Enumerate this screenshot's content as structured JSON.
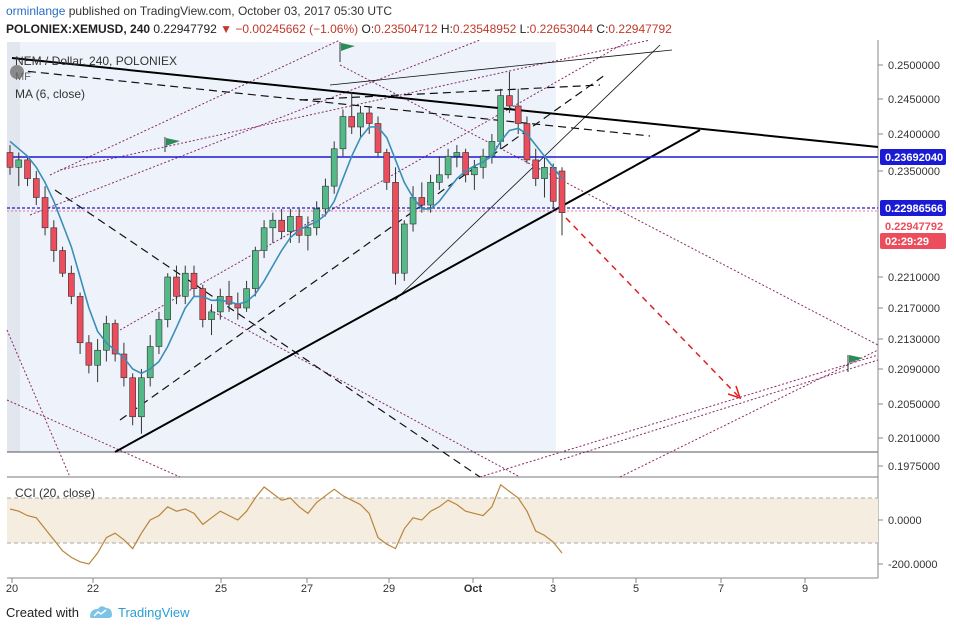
{
  "header": {
    "author": "orminlange",
    "published": "published on TradingView.com, October 03, 2017 05:30 UTC",
    "symbol": "POLONIEX:XEMUSD, 240",
    "last": "0.22947792",
    "change": "−0.00245662 (−1.06%)",
    "o_label": "O:",
    "o_value": "0.23504712",
    "h_label": "H:",
    "h_value": "0.23548952",
    "l_label": "L:",
    "l_value": "0.22653044",
    "c_label": "C:",
    "c_value": "0.22947792"
  },
  "legend": {
    "title": "NEM / Dollar, 240, POLONIEX",
    "mf": "MF",
    "ma": "MA (6, close)",
    "cci": "CCI (20, close)"
  },
  "footer": {
    "created_with": "Created with",
    "brand": "TradingView"
  },
  "colors": {
    "up": "#53b987",
    "down": "#eb4d5c",
    "ma": "#3a8fb7",
    "cci": "#b9853a",
    "hline": "#1b1bd6",
    "arrow": "#e02020",
    "trend": "#000000",
    "fan": "#8b2a6a"
  },
  "chart_data": [
    {
      "type": "candlestick",
      "title": "NEM / Dollar, 240, POLONIEX",
      "y_ticks": [
        "0.2500000",
        "0.2450000",
        "0.2400000",
        "0.2350000",
        "0.2210000",
        "0.2170000",
        "0.2130000",
        "0.2090000",
        "0.2050000",
        "0.2010000",
        "0.1975000"
      ],
      "x_ticks": [
        "20",
        "22",
        "25",
        "27",
        "29",
        "Oct",
        "3",
        "5",
        "7",
        "9"
      ],
      "price_labels": [
        {
          "value": "0.23692040",
          "kind": "horizontal-line"
        },
        {
          "value": "0.22986566",
          "kind": "horizontal-line"
        },
        {
          "value": "0.22947792",
          "kind": "last-price"
        },
        {
          "value": "02:29:29",
          "kind": "countdown"
        }
      ],
      "ohlc": [
        [
          0.2375,
          0.2385,
          0.2345,
          0.2355
        ],
        [
          0.2355,
          0.2375,
          0.233,
          0.2365
        ],
        [
          0.2365,
          0.237,
          0.233,
          0.234
        ],
        [
          0.234,
          0.235,
          0.2305,
          0.2315
        ],
        [
          0.2315,
          0.233,
          0.2265,
          0.2275
        ],
        [
          0.2275,
          0.2285,
          0.223,
          0.2245
        ],
        [
          0.2245,
          0.225,
          0.221,
          0.2215
        ],
        [
          0.2215,
          0.2225,
          0.2175,
          0.2185
        ],
        [
          0.2185,
          0.219,
          0.211,
          0.2125
        ],
        [
          0.2125,
          0.2135,
          0.2085,
          0.2095
        ],
        [
          0.2095,
          0.213,
          0.2075,
          0.2115
        ],
        [
          0.2115,
          0.216,
          0.21,
          0.215
        ],
        [
          0.215,
          0.2155,
          0.21,
          0.211
        ],
        [
          0.211,
          0.2125,
          0.207,
          0.208
        ],
        [
          0.208,
          0.2085,
          0.2025,
          0.2035
        ],
        [
          0.2035,
          0.209,
          0.2015,
          0.208
        ],
        [
          0.208,
          0.2135,
          0.207,
          0.212
        ],
        [
          0.212,
          0.2165,
          0.211,
          0.2155
        ],
        [
          0.2155,
          0.2215,
          0.2145,
          0.221
        ],
        [
          0.221,
          0.2225,
          0.2175,
          0.2185
        ],
        [
          0.2185,
          0.2225,
          0.2175,
          0.2215
        ],
        [
          0.2215,
          0.2225,
          0.2185,
          0.2195
        ],
        [
          0.2195,
          0.22,
          0.2145,
          0.2155
        ],
        [
          0.2155,
          0.2175,
          0.2135,
          0.2165
        ],
        [
          0.2165,
          0.2195,
          0.2155,
          0.2185
        ],
        [
          0.2185,
          0.2205,
          0.2165,
          0.2175
        ],
        [
          0.2175,
          0.219,
          0.2155,
          0.217
        ],
        [
          0.217,
          0.2205,
          0.2165,
          0.2195
        ],
        [
          0.2195,
          0.225,
          0.2185,
          0.2245
        ],
        [
          0.2245,
          0.2285,
          0.2235,
          0.2275
        ],
        [
          0.2275,
          0.2295,
          0.2255,
          0.2285
        ],
        [
          0.2285,
          0.23,
          0.226,
          0.227
        ],
        [
          0.227,
          0.23,
          0.2255,
          0.229
        ],
        [
          0.229,
          0.23,
          0.2255,
          0.2265
        ],
        [
          0.2265,
          0.229,
          0.2245,
          0.2275
        ],
        [
          0.2275,
          0.231,
          0.2265,
          0.23
        ],
        [
          0.23,
          0.234,
          0.229,
          0.233
        ],
        [
          0.233,
          0.239,
          0.232,
          0.238
        ],
        [
          0.238,
          0.2435,
          0.237,
          0.2425
        ],
        [
          0.2425,
          0.246,
          0.24,
          0.241
        ],
        [
          0.241,
          0.244,
          0.2395,
          0.243
        ],
        [
          0.243,
          0.244,
          0.24,
          0.2415
        ],
        [
          0.2415,
          0.2425,
          0.237,
          0.2375
        ],
        [
          0.2375,
          0.238,
          0.2325,
          0.2335
        ],
        [
          0.2335,
          0.2355,
          0.22,
          0.2215
        ],
        [
          0.2215,
          0.2285,
          0.2205,
          0.228
        ],
        [
          0.228,
          0.233,
          0.227,
          0.2315
        ],
        [
          0.2315,
          0.2335,
          0.2295,
          0.2305
        ],
        [
          0.2305,
          0.2345,
          0.2295,
          0.2335
        ],
        [
          0.2335,
          0.237,
          0.2325,
          0.2345
        ],
        [
          0.2345,
          0.238,
          0.234,
          0.237
        ],
        [
          0.237,
          0.2385,
          0.2355,
          0.2375
        ],
        [
          0.2375,
          0.238,
          0.2335,
          0.2345
        ],
        [
          0.2345,
          0.2365,
          0.2325,
          0.2355
        ],
        [
          0.2355,
          0.238,
          0.234,
          0.237
        ],
        [
          0.237,
          0.24,
          0.236,
          0.239
        ],
        [
          0.239,
          0.2465,
          0.238,
          0.2455
        ],
        [
          0.2455,
          0.249,
          0.243,
          0.244
        ],
        [
          0.244,
          0.2465,
          0.24,
          0.2415
        ],
        [
          0.2415,
          0.2425,
          0.236,
          0.2365
        ],
        [
          0.2365,
          0.238,
          0.233,
          0.234
        ],
        [
          0.234,
          0.237,
          0.2315,
          0.2355
        ],
        [
          0.2355,
          0.236,
          0.23,
          0.231
        ],
        [
          0.235,
          0.2355,
          0.2265,
          0.2295
        ]
      ],
      "ma_6": [
        0.239,
        0.238,
        0.237,
        0.2355,
        0.2335,
        0.231,
        0.228,
        0.225,
        0.221,
        0.217,
        0.214,
        0.2125,
        0.2115,
        0.2105,
        0.209,
        0.2085,
        0.209,
        0.21,
        0.212,
        0.2145,
        0.217,
        0.2185,
        0.2185,
        0.218,
        0.218,
        0.2178,
        0.2175,
        0.2178,
        0.2188,
        0.2205,
        0.2225,
        0.2245,
        0.2262,
        0.2272,
        0.2278,
        0.2283,
        0.2292,
        0.231,
        0.234,
        0.237,
        0.2395,
        0.241,
        0.241,
        0.2395,
        0.2365,
        0.2335,
        0.2315,
        0.23,
        0.23,
        0.231,
        0.2325,
        0.234,
        0.235,
        0.2357,
        0.2362,
        0.237,
        0.239,
        0.2405,
        0.2408,
        0.24,
        0.2385,
        0.237,
        0.2355,
        0.234
      ],
      "cci_20": [
        50,
        40,
        20,
        10,
        -40,
        -90,
        -140,
        -170,
        -190,
        -200,
        -150,
        -80,
        -60,
        -90,
        -130,
        -60,
        0,
        20,
        60,
        40,
        50,
        30,
        -20,
        10,
        40,
        20,
        0,
        40,
        100,
        150,
        120,
        90,
        100,
        60,
        30,
        80,
        110,
        140,
        110,
        90,
        70,
        30,
        -80,
        -110,
        -130,
        -40,
        10,
        0,
        40,
        60,
        90,
        70,
        40,
        30,
        20,
        60,
        160,
        130,
        100,
        40,
        -50,
        -70,
        -100,
        -150
      ],
      "cci_levels": [
        100,
        -100
      ],
      "cci_ticks": [
        "0.0000",
        "-200.0000"
      ]
    }
  ]
}
